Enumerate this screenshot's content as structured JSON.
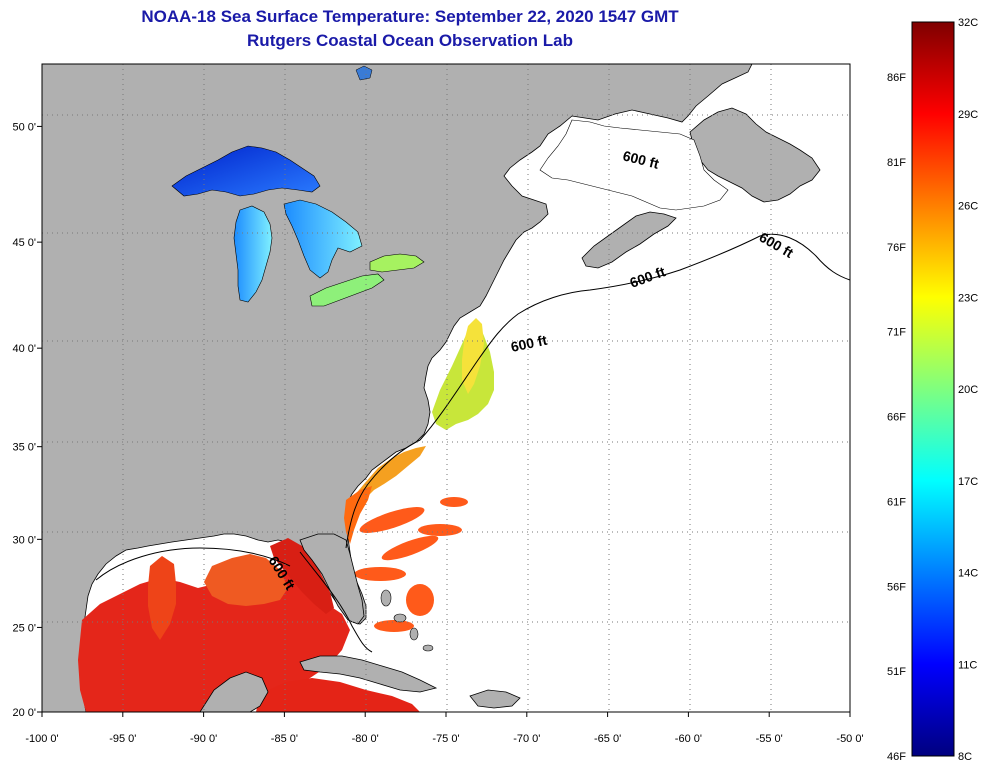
{
  "title": {
    "line1": "NOAA-18 Sea Surface Temperature:  September 22, 2020 1547 GMT",
    "line2": "Rutgers Coastal Ocean Observation Lab"
  },
  "map": {
    "x_axis": {
      "range_deg": [
        -100,
        -50
      ],
      "ticks": [
        {
          "value": -100,
          "label": "-100 0'"
        },
        {
          "value": -95,
          "label": "-95 0'"
        },
        {
          "value": -90,
          "label": "-90 0'"
        },
        {
          "value": -85,
          "label": "-85 0'"
        },
        {
          "value": -80,
          "label": "-80 0'"
        },
        {
          "value": -75,
          "label": "-75 0'"
        },
        {
          "value": -70,
          "label": "-70 0'"
        },
        {
          "value": -65,
          "label": "-65 0'"
        },
        {
          "value": -60,
          "label": "-60 0'"
        },
        {
          "value": -55,
          "label": "-55 0'"
        },
        {
          "value": -50,
          "label": "-50 0'"
        }
      ]
    },
    "y_axis": {
      "range_deg": [
        20,
        52.5
      ],
      "ticks": [
        {
          "value": 20,
          "label": "20 0'"
        },
        {
          "value": 25,
          "label": "25 0'"
        },
        {
          "value": 30,
          "label": "30 0'"
        },
        {
          "value": 35,
          "label": "35 0'"
        },
        {
          "value": 40,
          "label": "40 0'"
        },
        {
          "value": 45,
          "label": "45 0'"
        },
        {
          "value": 50,
          "label": "50 0'"
        }
      ]
    },
    "contour_label": "600 ft",
    "colors": {
      "land": "#b0b0b0",
      "ocean_nodata": "#ffffff",
      "coast": "#000000"
    }
  },
  "colorbar": {
    "celsius": [
      "32C",
      "29C",
      "26C",
      "23C",
      "20C",
      "17C",
      "14C",
      "11C",
      "8C"
    ],
    "fahrenheit": [
      "86F",
      "81F",
      "76F",
      "71F",
      "66F",
      "61F",
      "56F",
      "51F",
      "46F"
    ],
    "colors": [
      "#00007f",
      "#0000ff",
      "#007fff",
      "#00ffff",
      "#7fff7f",
      "#ffff00",
      "#ff7f00",
      "#ff0000",
      "#7f0000"
    ]
  }
}
